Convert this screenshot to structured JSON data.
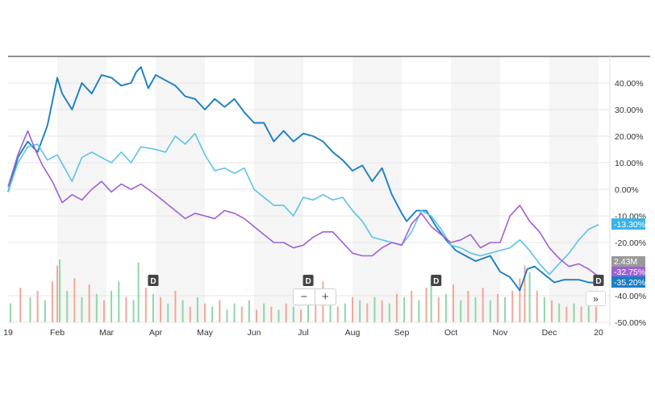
{
  "chart_data": {
    "type": "line",
    "ylim": [
      -50,
      50
    ],
    "y_ticks": [
      {
        "value": 40,
        "label": "40.00%"
      },
      {
        "value": 30,
        "label": "30.00%"
      },
      {
        "value": 20,
        "label": "20.00%"
      },
      {
        "value": 10,
        "label": "10.00%"
      },
      {
        "value": 0,
        "label": "0.00%"
      },
      {
        "value": -10,
        "label": "-10.00%"
      },
      {
        "value": -20,
        "label": "-20.00%"
      },
      {
        "value": -40,
        "label": "-40.00%"
      },
      {
        "value": -50,
        "label": "-50.00%"
      }
    ],
    "x_ticks": [
      {
        "pos": 0,
        "label": "19"
      },
      {
        "pos": 1,
        "label": "Feb"
      },
      {
        "pos": 2,
        "label": "Mar"
      },
      {
        "pos": 3,
        "label": "Apr"
      },
      {
        "pos": 4,
        "label": "May"
      },
      {
        "pos": 5,
        "label": "Jun"
      },
      {
        "pos": 6,
        "label": "Jul"
      },
      {
        "pos": 7,
        "label": "Aug"
      },
      {
        "pos": 8,
        "label": "Sep"
      },
      {
        "pos": 9,
        "label": "Oct"
      },
      {
        "pos": 10,
        "label": "Nov"
      },
      {
        "pos": 11,
        "label": "Dec"
      },
      {
        "pos": 12,
        "label": "20"
      }
    ],
    "series": [
      {
        "color": "#1a7fc4",
        "last_label": "-35.20%",
        "last_value": -35.2,
        "points": [
          [
            0,
            -1
          ],
          [
            0.2,
            12
          ],
          [
            0.4,
            18
          ],
          [
            0.6,
            14
          ],
          [
            0.8,
            24
          ],
          [
            1.0,
            42
          ],
          [
            1.1,
            36
          ],
          [
            1.3,
            30
          ],
          [
            1.5,
            40
          ],
          [
            1.7,
            36
          ],
          [
            1.9,
            43
          ],
          [
            2.1,
            42
          ],
          [
            2.3,
            39
          ],
          [
            2.5,
            40
          ],
          [
            2.6,
            44
          ],
          [
            2.7,
            46
          ],
          [
            2.85,
            38
          ],
          [
            3.0,
            43
          ],
          [
            3.2,
            41
          ],
          [
            3.4,
            39
          ],
          [
            3.6,
            35
          ],
          [
            3.8,
            34
          ],
          [
            4.0,
            30
          ],
          [
            4.2,
            34
          ],
          [
            4.4,
            31
          ],
          [
            4.6,
            34
          ],
          [
            4.8,
            29
          ],
          [
            5.0,
            25
          ],
          [
            5.2,
            25
          ],
          [
            5.4,
            18
          ],
          [
            5.6,
            22
          ],
          [
            5.8,
            18
          ],
          [
            6.0,
            21
          ],
          [
            6.2,
            20
          ],
          [
            6.4,
            18
          ],
          [
            6.6,
            14
          ],
          [
            6.8,
            11
          ],
          [
            7.0,
            7
          ],
          [
            7.2,
            9
          ],
          [
            7.4,
            3
          ],
          [
            7.6,
            8
          ],
          [
            7.8,
            -2
          ],
          [
            8.0,
            -9
          ],
          [
            8.1,
            -12
          ],
          [
            8.3,
            -8
          ],
          [
            8.5,
            -8
          ],
          [
            8.7,
            -14
          ],
          [
            8.9,
            -19
          ],
          [
            9.1,
            -23
          ],
          [
            9.3,
            -25
          ],
          [
            9.5,
            -27
          ],
          [
            9.8,
            -25
          ],
          [
            10.0,
            -31
          ],
          [
            10.2,
            -33
          ],
          [
            10.4,
            -38
          ],
          [
            10.55,
            -30
          ],
          [
            10.7,
            -29
          ],
          [
            10.9,
            -32
          ],
          [
            11.1,
            -35
          ],
          [
            11.3,
            -34
          ],
          [
            11.6,
            -34
          ],
          [
            11.8,
            -35
          ],
          [
            12.0,
            -35.2
          ]
        ]
      },
      {
        "color": "#5cc3e8",
        "last_label": "-13.30%",
        "last_value": -13.3,
        "points": [
          [
            0,
            -1
          ],
          [
            0.2,
            10
          ],
          [
            0.4,
            16
          ],
          [
            0.6,
            17
          ],
          [
            0.8,
            11
          ],
          [
            1.0,
            13
          ],
          [
            1.3,
            3
          ],
          [
            1.5,
            12
          ],
          [
            1.7,
            14
          ],
          [
            1.9,
            12
          ],
          [
            2.1,
            10
          ],
          [
            2.3,
            14
          ],
          [
            2.5,
            10
          ],
          [
            2.7,
            16
          ],
          [
            3.0,
            15
          ],
          [
            3.2,
            14
          ],
          [
            3.4,
            20
          ],
          [
            3.6,
            17
          ],
          [
            3.8,
            21
          ],
          [
            4.0,
            13
          ],
          [
            4.2,
            7
          ],
          [
            4.4,
            8
          ],
          [
            4.6,
            6
          ],
          [
            4.8,
            8
          ],
          [
            5.0,
            0
          ],
          [
            5.2,
            -3
          ],
          [
            5.4,
            -6
          ],
          [
            5.6,
            -6
          ],
          [
            5.8,
            -10
          ],
          [
            6.0,
            -3
          ],
          [
            6.2,
            -4
          ],
          [
            6.4,
            -2
          ],
          [
            6.6,
            -4
          ],
          [
            6.8,
            -3
          ],
          [
            7.0,
            -8
          ],
          [
            7.2,
            -12
          ],
          [
            7.4,
            -18
          ],
          [
            7.6,
            -19
          ],
          [
            7.8,
            -20
          ],
          [
            8.0,
            -21
          ],
          [
            8.2,
            -16
          ],
          [
            8.4,
            -8
          ],
          [
            8.6,
            -10
          ],
          [
            8.8,
            -15
          ],
          [
            9.0,
            -21
          ],
          [
            9.2,
            -22
          ],
          [
            9.4,
            -24
          ],
          [
            9.6,
            -25
          ],
          [
            9.8,
            -24
          ],
          [
            10.0,
            -23
          ],
          [
            10.2,
            -22
          ],
          [
            10.4,
            -19
          ],
          [
            10.6,
            -23
          ],
          [
            10.8,
            -28
          ],
          [
            11.0,
            -32
          ],
          [
            11.2,
            -28
          ],
          [
            11.4,
            -24
          ],
          [
            11.6,
            -19
          ],
          [
            11.8,
            -15
          ],
          [
            12.0,
            -13.3
          ]
        ]
      },
      {
        "color": "#a060d4",
        "last_label": "-32.75%",
        "last_value": -32.75,
        "points": [
          [
            0,
            1
          ],
          [
            0.2,
            13
          ],
          [
            0.4,
            22
          ],
          [
            0.55,
            15
          ],
          [
            0.7,
            9
          ],
          [
            0.9,
            3
          ],
          [
            1.1,
            -5
          ],
          [
            1.3,
            -2
          ],
          [
            1.5,
            -4
          ],
          [
            1.7,
            0
          ],
          [
            1.9,
            3
          ],
          [
            2.1,
            -1
          ],
          [
            2.3,
            2
          ],
          [
            2.5,
            0
          ],
          [
            2.7,
            2
          ],
          [
            3.0,
            -2
          ],
          [
            3.2,
            -5
          ],
          [
            3.4,
            -8
          ],
          [
            3.6,
            -11
          ],
          [
            3.8,
            -9
          ],
          [
            4.0,
            -10
          ],
          [
            4.2,
            -11
          ],
          [
            4.4,
            -8
          ],
          [
            4.6,
            -9
          ],
          [
            4.8,
            -11
          ],
          [
            5.0,
            -14
          ],
          [
            5.2,
            -17
          ],
          [
            5.4,
            -20
          ],
          [
            5.6,
            -20
          ],
          [
            5.8,
            -22
          ],
          [
            6.0,
            -21
          ],
          [
            6.2,
            -18
          ],
          [
            6.4,
            -16
          ],
          [
            6.6,
            -16
          ],
          [
            6.8,
            -20
          ],
          [
            7.0,
            -24
          ],
          [
            7.2,
            -25
          ],
          [
            7.4,
            -25
          ],
          [
            7.6,
            -22
          ],
          [
            7.8,
            -20
          ],
          [
            8.0,
            -21
          ],
          [
            8.2,
            -13
          ],
          [
            8.4,
            -9
          ],
          [
            8.6,
            -14
          ],
          [
            8.8,
            -17
          ],
          [
            9.0,
            -20
          ],
          [
            9.2,
            -19
          ],
          [
            9.4,
            -17
          ],
          [
            9.6,
            -22
          ],
          [
            9.8,
            -20
          ],
          [
            10.0,
            -20
          ],
          [
            10.2,
            -10
          ],
          [
            10.4,
            -6
          ],
          [
            10.6,
            -12
          ],
          [
            10.8,
            -16
          ],
          [
            11.0,
            -22
          ],
          [
            11.2,
            -26
          ],
          [
            11.4,
            -29
          ],
          [
            11.6,
            -28
          ],
          [
            11.8,
            -30
          ],
          [
            12.0,
            -32.75
          ]
        ]
      }
    ],
    "volume_label": "2.43M",
    "volume": [
      {
        "x": 0.05,
        "v": 0.3,
        "c": "g"
      },
      {
        "x": 0.25,
        "v": 0.55,
        "c": "r"
      },
      {
        "x": 0.45,
        "v": 0.4,
        "c": "g"
      },
      {
        "x": 0.6,
        "v": 0.5,
        "c": "r"
      },
      {
        "x": 0.75,
        "v": 0.35,
        "c": "g"
      },
      {
        "x": 0.9,
        "v": 0.65,
        "c": "r"
      },
      {
        "x": 1.0,
        "v": 0.9,
        "c": "r"
      },
      {
        "x": 1.05,
        "v": 1.0,
        "c": "g"
      },
      {
        "x": 1.2,
        "v": 0.5,
        "c": "g"
      },
      {
        "x": 1.35,
        "v": 0.7,
        "c": "r"
      },
      {
        "x": 1.5,
        "v": 0.4,
        "c": "g"
      },
      {
        "x": 1.65,
        "v": 0.6,
        "c": "r"
      },
      {
        "x": 1.8,
        "v": 0.45,
        "c": "g"
      },
      {
        "x": 1.95,
        "v": 0.35,
        "c": "r"
      },
      {
        "x": 2.1,
        "v": 0.5,
        "c": "g"
      },
      {
        "x": 2.25,
        "v": 0.65,
        "c": "g"
      },
      {
        "x": 2.4,
        "v": 0.4,
        "c": "r"
      },
      {
        "x": 2.55,
        "v": 0.35,
        "c": "g"
      },
      {
        "x": 2.65,
        "v": 0.95,
        "c": "g"
      },
      {
        "x": 2.8,
        "v": 0.55,
        "c": "r"
      },
      {
        "x": 2.95,
        "v": 0.45,
        "c": "g"
      },
      {
        "x": 3.1,
        "v": 0.4,
        "c": "r"
      },
      {
        "x": 3.25,
        "v": 0.3,
        "c": "g"
      },
      {
        "x": 3.4,
        "v": 0.5,
        "c": "r"
      },
      {
        "x": 3.55,
        "v": 0.35,
        "c": "g"
      },
      {
        "x": 3.7,
        "v": 0.25,
        "c": "r"
      },
      {
        "x": 3.85,
        "v": 0.4,
        "c": "g"
      },
      {
        "x": 4.0,
        "v": 0.3,
        "c": "r"
      },
      {
        "x": 4.15,
        "v": 0.25,
        "c": "g"
      },
      {
        "x": 4.3,
        "v": 0.35,
        "c": "r"
      },
      {
        "x": 4.45,
        "v": 0.2,
        "c": "g"
      },
      {
        "x": 4.6,
        "v": 0.3,
        "c": "g"
      },
      {
        "x": 4.75,
        "v": 0.25,
        "c": "r"
      },
      {
        "x": 4.9,
        "v": 0.35,
        "c": "g"
      },
      {
        "x": 5.05,
        "v": 0.2,
        "c": "r"
      },
      {
        "x": 5.2,
        "v": 0.3,
        "c": "g"
      },
      {
        "x": 5.35,
        "v": 0.25,
        "c": "r"
      },
      {
        "x": 5.5,
        "v": 0.2,
        "c": "g"
      },
      {
        "x": 5.65,
        "v": 0.3,
        "c": "r"
      },
      {
        "x": 5.8,
        "v": 0.25,
        "c": "g"
      },
      {
        "x": 5.95,
        "v": 0.2,
        "c": "r"
      },
      {
        "x": 6.1,
        "v": 0.3,
        "c": "g"
      },
      {
        "x": 6.25,
        "v": 0.35,
        "c": "r"
      },
      {
        "x": 6.4,
        "v": 0.65,
        "c": "r"
      },
      {
        "x": 6.55,
        "v": 0.3,
        "c": "g"
      },
      {
        "x": 6.7,
        "v": 0.25,
        "c": "r"
      },
      {
        "x": 6.85,
        "v": 0.3,
        "c": "g"
      },
      {
        "x": 7.0,
        "v": 0.4,
        "c": "r"
      },
      {
        "x": 7.15,
        "v": 0.35,
        "c": "g"
      },
      {
        "x": 7.3,
        "v": 0.3,
        "c": "r"
      },
      {
        "x": 7.45,
        "v": 0.4,
        "c": "g"
      },
      {
        "x": 7.6,
        "v": 0.35,
        "c": "r"
      },
      {
        "x": 7.75,
        "v": 0.3,
        "c": "g"
      },
      {
        "x": 7.9,
        "v": 0.45,
        "c": "r"
      },
      {
        "x": 8.05,
        "v": 0.4,
        "c": "g"
      },
      {
        "x": 8.2,
        "v": 0.5,
        "c": "r"
      },
      {
        "x": 8.35,
        "v": 0.35,
        "c": "g"
      },
      {
        "x": 8.5,
        "v": 0.55,
        "c": "r"
      },
      {
        "x": 8.6,
        "v": 0.7,
        "c": "g"
      },
      {
        "x": 8.75,
        "v": 0.4,
        "c": "r"
      },
      {
        "x": 8.9,
        "v": 0.45,
        "c": "g"
      },
      {
        "x": 9.05,
        "v": 0.6,
        "c": "r"
      },
      {
        "x": 9.2,
        "v": 0.35,
        "c": "g"
      },
      {
        "x": 9.35,
        "v": 0.5,
        "c": "r"
      },
      {
        "x": 9.5,
        "v": 0.4,
        "c": "g"
      },
      {
        "x": 9.65,
        "v": 0.55,
        "c": "r"
      },
      {
        "x": 9.8,
        "v": 0.35,
        "c": "g"
      },
      {
        "x": 9.95,
        "v": 0.45,
        "c": "r"
      },
      {
        "x": 10.1,
        "v": 0.4,
        "c": "g"
      },
      {
        "x": 10.25,
        "v": 0.5,
        "c": "r"
      },
      {
        "x": 10.4,
        "v": 0.7,
        "c": "r"
      },
      {
        "x": 10.5,
        "v": 0.9,
        "c": "r"
      },
      {
        "x": 10.6,
        "v": 0.8,
        "c": "g"
      },
      {
        "x": 10.75,
        "v": 0.5,
        "c": "r"
      },
      {
        "x": 10.9,
        "v": 0.4,
        "c": "g"
      },
      {
        "x": 11.05,
        "v": 0.35,
        "c": "r"
      },
      {
        "x": 11.2,
        "v": 0.3,
        "c": "g"
      },
      {
        "x": 11.35,
        "v": 0.25,
        "c": "r"
      },
      {
        "x": 11.5,
        "v": 0.3,
        "c": "g"
      },
      {
        "x": 11.65,
        "v": 0.25,
        "c": "r"
      },
      {
        "x": 11.8,
        "v": 0.3,
        "c": "g"
      },
      {
        "x": 11.95,
        "v": 0.25,
        "c": "r"
      }
    ],
    "events": [
      {
        "x": 2.95,
        "label": "D"
      },
      {
        "x": 6.1,
        "label": "D"
      },
      {
        "x": 8.7,
        "label": "D"
      },
      {
        "x": 12.0,
        "label": "D"
      }
    ],
    "grid": true
  },
  "controls": {
    "zoom_out": "−",
    "zoom_in": "+",
    "expand": "»"
  }
}
